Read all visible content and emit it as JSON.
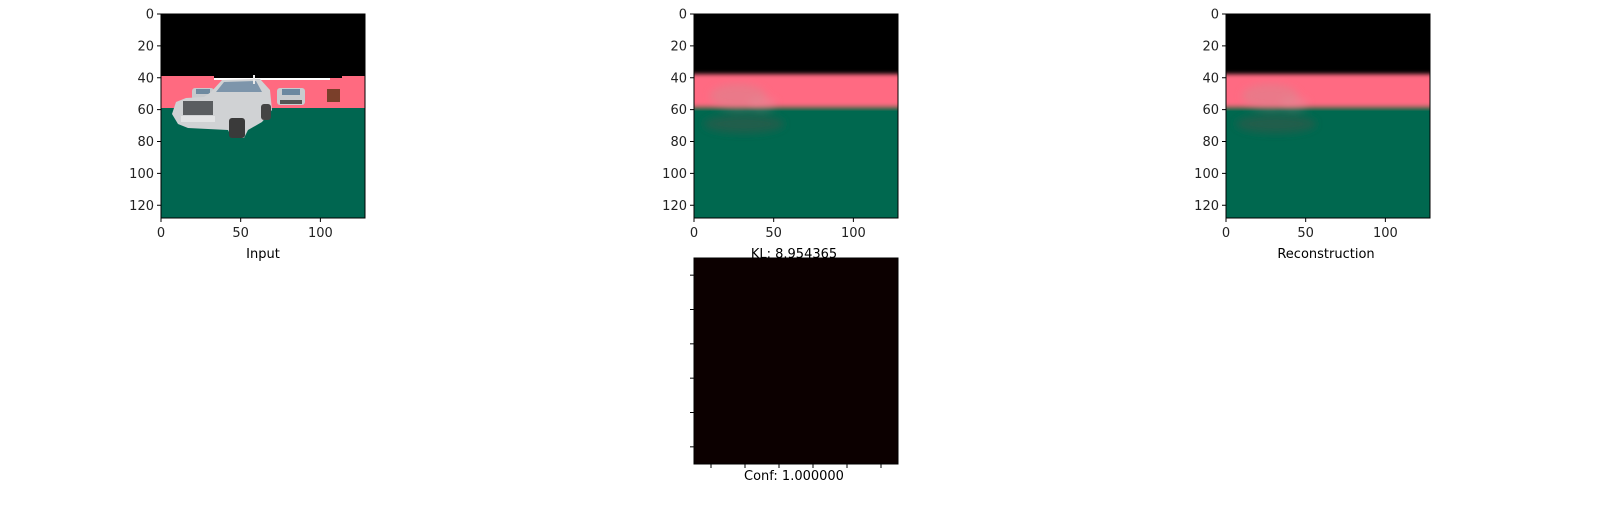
{
  "chart_data": [
    {
      "type": "image",
      "id": "input",
      "xlabel": "Input",
      "xlim": [
        0,
        128
      ],
      "ylim": [
        0,
        128
      ],
      "x_ticks": [
        0,
        50,
        100
      ],
      "y_ticks": [
        0,
        20,
        40,
        60,
        80,
        100,
        120
      ],
      "colors": {
        "sky": "#000000",
        "wall": "#ff6a80",
        "ground": "#006650",
        "car": "#cfd1d3"
      }
    },
    {
      "type": "image",
      "id": "kl",
      "xlabel": "KL: 8.954365",
      "xlim": [
        0,
        128
      ],
      "ylim": [
        0,
        128
      ],
      "x_ticks": [
        0,
        50,
        100
      ],
      "y_ticks": [
        0,
        20,
        40,
        60,
        80,
        100,
        120
      ],
      "colors": {
        "sky": "#000000",
        "wall": "#ff6a82",
        "ground": "#046750"
      }
    },
    {
      "type": "image",
      "id": "reconstruction",
      "xlabel": "Reconstruction",
      "xlim": [
        0,
        128
      ],
      "ylim": [
        0,
        128
      ],
      "x_ticks": [
        0,
        50,
        100
      ],
      "y_ticks": [
        0,
        20,
        40,
        60,
        80,
        100,
        120
      ],
      "colors": {
        "sky": "#000000",
        "wall": "#ff6a82",
        "ground": "#046750"
      }
    },
    {
      "type": "heatmap",
      "id": "confidence",
      "xlabel": "Conf: 1.000000",
      "x_ticks_count": 6,
      "y_ticks_count": 6,
      "colors": {
        "fill": "#0c0000"
      }
    }
  ]
}
